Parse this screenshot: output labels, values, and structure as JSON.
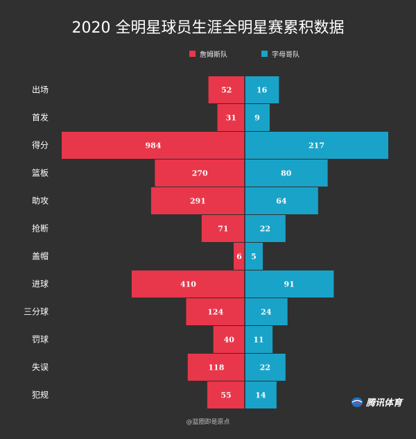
{
  "title": "2020 全明星球员生涯全明星赛累积数据",
  "legend": [
    {
      "label": "詹姆斯队",
      "color": "#e8374a"
    },
    {
      "label": "字母哥队",
      "color": "#1aa3c8"
    }
  ],
  "chart_data": {
    "type": "bar",
    "categories": [
      "出场",
      "首发",
      "得分",
      "篮板",
      "助攻",
      "抢断",
      "盖帽",
      "进球",
      "三分球",
      "罚球",
      "失误",
      "犯规"
    ],
    "series": [
      {
        "name": "詹姆斯队",
        "color": "#e8374a",
        "values": [
          52,
          31,
          984,
          270,
          291,
          71,
          6,
          410,
          124,
          40,
          118,
          55
        ]
      },
      {
        "name": "字母哥队",
        "color": "#1aa3c8",
        "values": [
          16,
          9,
          217,
          80,
          64,
          22,
          5,
          91,
          24,
          11,
          22,
          14
        ]
      }
    ]
  },
  "logo_text": "腾讯体育",
  "watermark": "@篮圈即是原点"
}
